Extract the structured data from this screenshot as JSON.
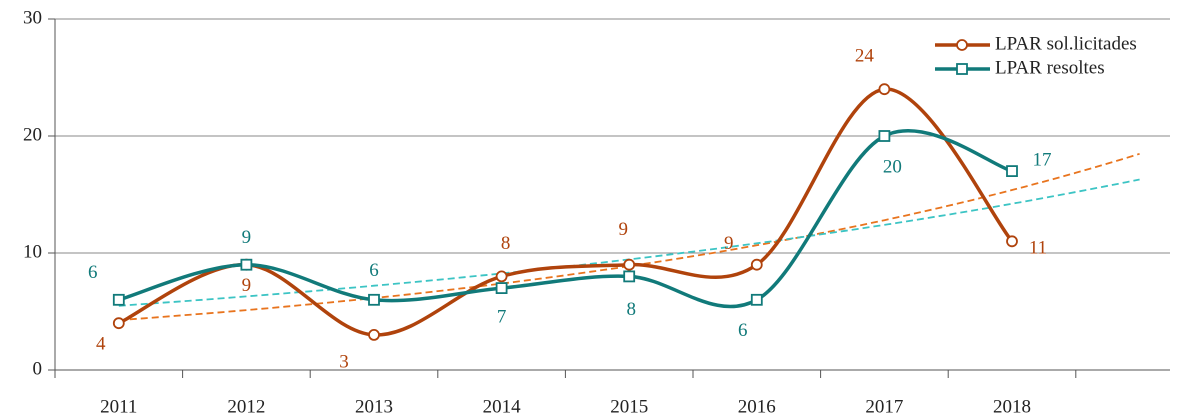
{
  "chart_data": {
    "type": "line",
    "categories": [
      "2011",
      "2012",
      "2013",
      "2014",
      "2015",
      "2016",
      "2017",
      "2018"
    ],
    "series": [
      {
        "name": "LPAR sol.licitades",
        "color": "#b0430c",
        "trend_color": "#e8741e",
        "marker": "circle",
        "values": [
          4,
          9,
          3,
          8,
          9,
          9,
          24,
          11
        ]
      },
      {
        "name": "LPAR resoltes",
        "color": "#117a7a",
        "trend_color": "#3cc4c4",
        "marker": "square",
        "values": [
          6,
          9,
          6,
          7,
          8,
          6,
          20,
          17
        ]
      }
    ],
    "ylim": [
      0,
      30
    ],
    "yticks": [
      0,
      10,
      20,
      30
    ],
    "grid": true,
    "smooth": true,
    "trendline": "exponential",
    "legend": "upper right"
  }
}
